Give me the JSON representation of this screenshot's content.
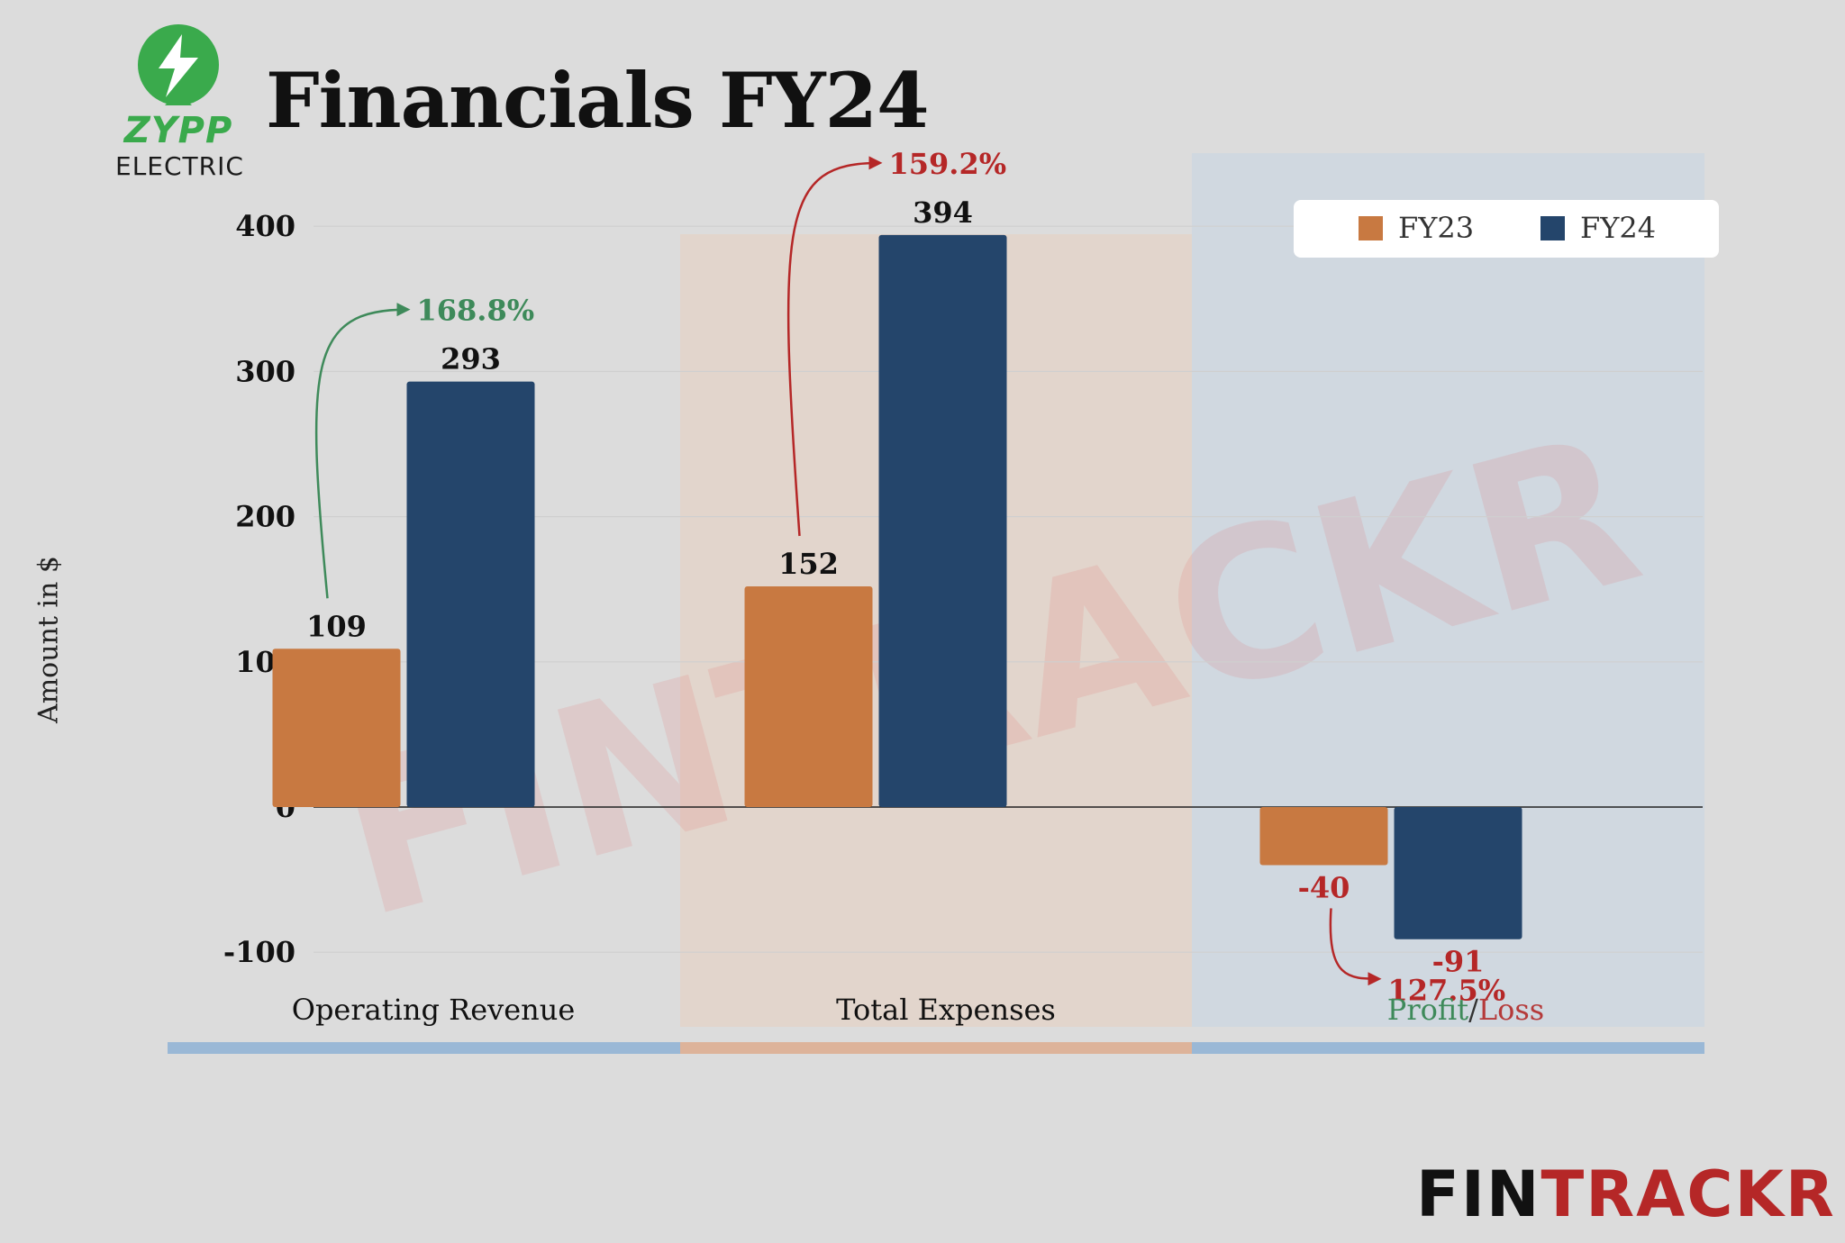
{
  "header": {
    "title": "Financials FY24",
    "logo_word": "ZYPP",
    "logo_sub": "ELECTRIC"
  },
  "brand": {
    "part1": "FIN",
    "part2": "TRACKR",
    "watermark": "FINTRACKR"
  },
  "colors": {
    "fy23": "#c87941",
    "fy24": "#24456b",
    "growth_green": "#3e8a5a",
    "growth_red": "#b52727",
    "band_blue": "#9ab8d6",
    "band_orange": "#ddb39a"
  },
  "category_labels": {
    "operating_revenue": "Operating Revenue",
    "total_expenses": "Total Expenses",
    "profit": "Profit",
    "slash": "/",
    "loss": "Loss"
  },
  "chart_data": {
    "type": "bar",
    "title": "Financials FY24",
    "ylabel": "Amount in $",
    "xlabel": "",
    "ylim": [
      -110,
      430
    ],
    "yticks": [
      -100,
      0,
      100,
      200,
      300,
      400
    ],
    "grid": true,
    "legend_position": "top-right",
    "categories": [
      "Operating Revenue",
      "Total Expenses",
      "Profit/Loss"
    ],
    "series": [
      {
        "name": "FY23",
        "values": [
          109,
          152,
          -40
        ]
      },
      {
        "name": "FY24",
        "values": [
          293,
          394,
          -91
        ]
      }
    ],
    "data_labels": {
      "FY23": [
        "109",
        "152",
        "-40"
      ],
      "FY24": [
        "293",
        "394",
        "-91"
      ]
    },
    "growth": [
      "168.8%",
      "159.2%",
      "127.5%"
    ]
  }
}
